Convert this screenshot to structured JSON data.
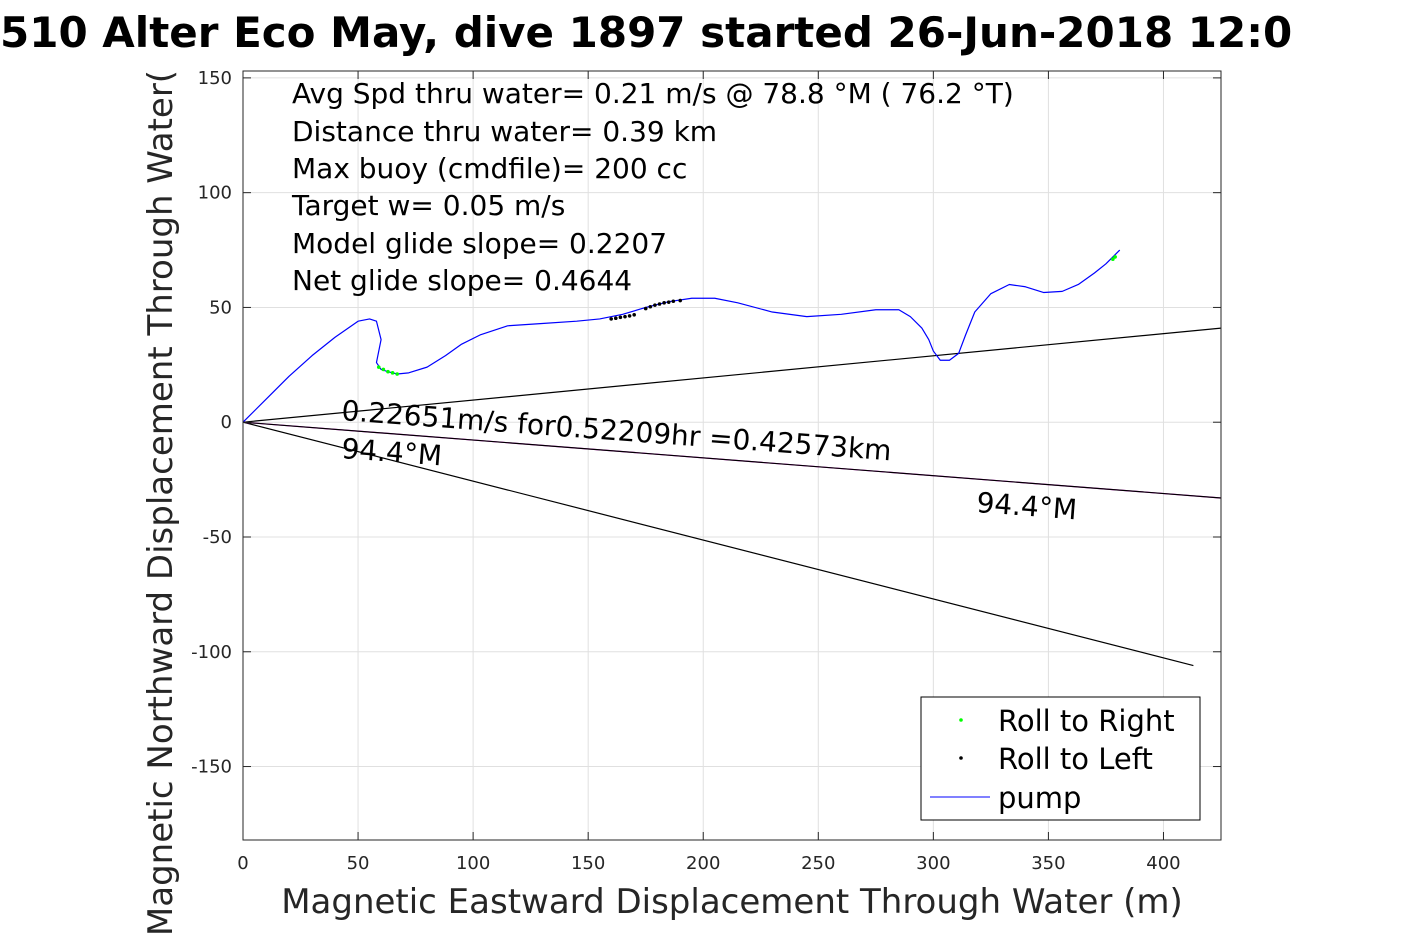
{
  "chart_data": {
    "type": "line",
    "title": "510 Alter Eco May, dive 1897 started 26-Jun-2018 12:0",
    "xlabel": "Magnetic Eastward Displacement Through Water (m)",
    "ylabel": "Magnetic Northward Displacement Through Water(",
    "xlim": [
      0,
      425
    ],
    "ylim": [
      -182,
      153
    ],
    "x_ticks": [
      0,
      50,
      100,
      150,
      200,
      250,
      300,
      350,
      400
    ],
    "y_ticks": [
      150,
      100,
      50,
      0,
      -50,
      -100,
      -150
    ],
    "grid": true,
    "legend_position": "bottom-right",
    "stats": [
      "Avg Spd thru water=  0.21 m/s @  78.8 °M ( 76.2 °T)",
      "Distance thru water=  0.39 km",
      "Max buoy (cmdfile)= 200 cc",
      "Target w= 0.05 m/s",
      "Model glide slope= 0.2207",
      "Net glide slope= 0.4644"
    ],
    "annotations": {
      "current_text": "0.22651m/s for0.52209hr =0.42573km",
      "heading_start": "94.4°M",
      "heading_end": "94.4°M"
    },
    "series": [
      {
        "name": "pump",
        "color": "#0000ff",
        "x": [
          0,
          5,
          12,
          20,
          30,
          40,
          50,
          55,
          58,
          60,
          58,
          60,
          63,
          67,
          72,
          80,
          88,
          95,
          103,
          115,
          130,
          145,
          155,
          165,
          175,
          185,
          195,
          205,
          215,
          230,
          245,
          260,
          275,
          285,
          290,
          295,
          298,
          300,
          303,
          307,
          311,
          314,
          318,
          325,
          333,
          340,
          348,
          356,
          363,
          370,
          375,
          378,
          381
        ],
        "y": [
          0,
          5,
          12,
          20,
          29,
          37,
          44,
          45,
          44,
          36,
          26,
          23,
          22,
          21,
          21.5,
          24,
          29,
          34,
          38,
          42,
          43,
          44,
          45,
          47,
          50,
          52.5,
          54,
          54,
          52,
          48,
          46,
          47,
          49,
          49,
          46,
          41,
          36,
          31,
          27,
          27,
          30,
          38,
          48,
          56,
          60,
          59,
          56.5,
          57,
          60,
          65,
          69,
          72,
          75
        ]
      },
      {
        "name": "Roll to Right",
        "color": "#00ff00",
        "x": [
          59,
          61,
          63,
          65,
          67,
          378,
          379
        ],
        "y": [
          24,
          23,
          22,
          21.5,
          21,
          71,
          72
        ]
      },
      {
        "name": "Roll to Left",
        "color": "#000000",
        "x": [
          160,
          162,
          164,
          166,
          168,
          170,
          175,
          177,
          179,
          181,
          183,
          185,
          187,
          190
        ],
        "y": [
          45,
          45.3,
          45.7,
          46,
          46.3,
          46.8,
          49.5,
          50.3,
          51,
          51.5,
          52,
          52.3,
          52.7,
          53
        ]
      }
    ],
    "reference_lines": [
      {
        "color": "#000000",
        "x": [
          0,
          425
        ],
        "y": [
          0,
          41
        ]
      },
      {
        "color": "#000000",
        "x": [
          0,
          413
        ],
        "y": [
          0,
          -106
        ]
      },
      {
        "color": "#ff00ff",
        "x": [
          0,
          425
        ],
        "y": [
          0,
          -33
        ]
      },
      {
        "color": "#000000",
        "x": [
          0,
          425
        ],
        "y": [
          0,
          -33
        ]
      }
    ]
  }
}
